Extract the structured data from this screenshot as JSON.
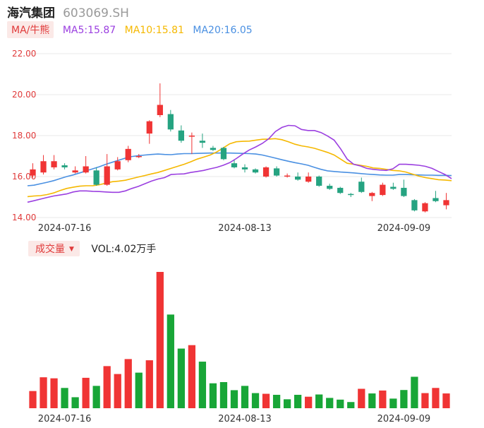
{
  "header": {
    "name": "海汽集团",
    "code": "603069.SH"
  },
  "legend": {
    "ma_label": "MA/牛熊",
    "ma5": "MA5:15.87",
    "ma10": "MA10:15.81",
    "ma20": "MA20:16.05",
    "ma5_color": "#9b3fe0",
    "ma10_color": "#f5b800",
    "ma20_color": "#4a90e2"
  },
  "volume": {
    "label": "成交量",
    "value_text": "VOL:4.02万手"
  },
  "colors": {
    "up": "#f03434",
    "down": "#25a381",
    "vol_up": "#f03434",
    "vol_down": "#18a637",
    "grid": "#e8e8e8"
  },
  "chart_data": {
    "type": "candlestick",
    "y_axis": {
      "ticks": [
        "22.00",
        "20.00",
        "18.00",
        "16.00",
        "14.00"
      ],
      "ylim": [
        14.0,
        22.0
      ]
    },
    "x_axis_labels": [
      {
        "label": "2024-07-16",
        "index": 3
      },
      {
        "label": "2024-08-13",
        "index": 20
      },
      {
        "label": "2024-09-09",
        "index": 35
      }
    ],
    "candles": [
      {
        "o": 16.05,
        "c": 16.35,
        "h": 16.65,
        "l": 15.95
      },
      {
        "o": 16.2,
        "c": 16.75,
        "h": 17.05,
        "l": 16.1
      },
      {
        "o": 16.45,
        "c": 16.75,
        "h": 17.05,
        "l": 16.35
      },
      {
        "o": 16.55,
        "c": 16.45,
        "h": 16.65,
        "l": 16.35
      },
      {
        "o": 16.2,
        "c": 16.3,
        "h": 16.5,
        "l": 16.15
      },
      {
        "o": 16.2,
        "c": 16.5,
        "h": 17.0,
        "l": 16.15
      },
      {
        "o": 16.3,
        "c": 15.6,
        "h": 16.45,
        "l": 15.55
      },
      {
        "o": 15.6,
        "c": 16.5,
        "h": 17.1,
        "l": 15.55
      },
      {
        "o": 16.35,
        "c": 16.75,
        "h": 16.95,
        "l": 16.3
      },
      {
        "o": 16.8,
        "c": 17.35,
        "h": 17.5,
        "l": 16.7
      },
      {
        "o": 16.95,
        "c": 17.0,
        "h": 17.1,
        "l": 16.9
      },
      {
        "o": 18.1,
        "c": 18.7,
        "h": 18.75,
        "l": 17.6
      },
      {
        "o": 19.0,
        "c": 19.5,
        "h": 20.55,
        "l": 18.9
      },
      {
        "o": 19.05,
        "c": 18.3,
        "h": 19.25,
        "l": 18.2
      },
      {
        "o": 18.25,
        "c": 17.75,
        "h": 18.5,
        "l": 17.65
      },
      {
        "o": 17.95,
        "c": 18.0,
        "h": 18.15,
        "l": 17.1
      },
      {
        "o": 17.75,
        "c": 17.65,
        "h": 18.1,
        "l": 17.4
      },
      {
        "o": 17.4,
        "c": 17.3,
        "h": 17.5,
        "l": 17.25
      },
      {
        "o": 17.4,
        "c": 16.85,
        "h": 17.45,
        "l": 16.8
      },
      {
        "o": 16.65,
        "c": 16.45,
        "h": 16.8,
        "l": 16.4
      },
      {
        "o": 16.45,
        "c": 16.35,
        "h": 16.6,
        "l": 16.2
      },
      {
        "o": 16.35,
        "c": 16.2,
        "h": 16.4,
        "l": 16.15
      },
      {
        "o": 16.0,
        "c": 16.45,
        "h": 16.5,
        "l": 15.95
      },
      {
        "o": 16.4,
        "c": 16.05,
        "h": 16.5,
        "l": 16.0
      },
      {
        "o": 16.0,
        "c": 16.05,
        "h": 16.15,
        "l": 15.95
      },
      {
        "o": 16.0,
        "c": 15.85,
        "h": 16.2,
        "l": 15.8
      },
      {
        "o": 15.75,
        "c": 16.0,
        "h": 16.2,
        "l": 15.7
      },
      {
        "o": 16.0,
        "c": 15.55,
        "h": 16.05,
        "l": 15.5
      },
      {
        "o": 15.55,
        "c": 15.4,
        "h": 15.65,
        "l": 15.35
      },
      {
        "o": 15.45,
        "c": 15.2,
        "h": 15.5,
        "l": 15.15
      },
      {
        "o": 15.15,
        "c": 15.1,
        "h": 15.2,
        "l": 15.0
      },
      {
        "o": 15.75,
        "c": 15.25,
        "h": 15.95,
        "l": 15.2
      },
      {
        "o": 15.05,
        "c": 15.2,
        "h": 15.25,
        "l": 14.8
      },
      {
        "o": 15.1,
        "c": 15.6,
        "h": 15.7,
        "l": 15.05
      },
      {
        "o": 15.5,
        "c": 15.4,
        "h": 15.7,
        "l": 15.35
      },
      {
        "o": 15.45,
        "c": 15.05,
        "h": 15.85,
        "l": 15.0
      },
      {
        "o": 14.85,
        "c": 14.35,
        "h": 14.9,
        "l": 14.3
      },
      {
        "o": 14.3,
        "c": 14.7,
        "h": 14.75,
        "l": 14.25
      },
      {
        "o": 14.95,
        "c": 14.8,
        "h": 15.3,
        "l": 14.75
      },
      {
        "o": 14.6,
        "c": 14.85,
        "h": 15.2,
        "l": 14.4
      }
    ],
    "ma5": [
      14.75,
      14.82,
      14.9,
      14.98,
      15.05,
      15.1,
      15.15,
      15.25,
      15.3,
      15.3,
      15.28,
      15.27,
      15.25,
      15.23,
      15.23,
      15.3,
      15.42,
      15.52,
      15.65,
      15.78,
      15.88,
      15.95,
      16.1,
      16.12,
      16.13,
      16.2,
      16.25,
      16.3,
      16.38,
      16.45,
      16.55,
      16.68,
      16.88,
      17.1,
      17.3,
      17.45,
      17.62,
      17.85,
      18.2,
      18.4,
      18.5,
      18.48,
      18.3,
      18.25,
      18.25,
      18.15,
      17.98,
      17.78,
      17.35,
      16.85,
      16.6,
      16.52,
      16.4,
      16.35,
      16.32,
      16.3,
      16.38,
      16.6,
      16.6,
      16.58,
      16.55,
      16.5,
      16.4,
      16.25,
      16.1,
      15.9
    ],
    "ma10": [
      15.02,
      15.05,
      15.07,
      15.12,
      15.2,
      15.32,
      15.42,
      15.48,
      15.53,
      15.55,
      15.55,
      15.6,
      15.68,
      15.75,
      15.78,
      15.82,
      15.9,
      15.98,
      16.05,
      16.13,
      16.2,
      16.3,
      16.4,
      16.5,
      16.6,
      16.72,
      16.85,
      16.95,
      17.05,
      17.2,
      17.4,
      17.6,
      17.7,
      17.72,
      17.73,
      17.78,
      17.82,
      17.83,
      17.85,
      17.8,
      17.7,
      17.58,
      17.5,
      17.45,
      17.38,
      17.28,
      17.18,
      17.05,
      16.85,
      16.65,
      16.6,
      16.55,
      16.5,
      16.42,
      16.4,
      16.35,
      16.3,
      16.28,
      16.22,
      16.12,
      16.02,
      15.95,
      15.9,
      15.85,
      15.83,
      15.8
    ],
    "ma20": [
      15.55,
      15.58,
      15.65,
      15.72,
      15.8,
      15.9,
      16.0,
      16.08,
      16.18,
      16.28,
      16.38,
      16.48,
      16.6,
      16.7,
      16.8,
      16.9,
      16.98,
      17.02,
      17.05,
      17.08,
      17.1,
      17.08,
      17.07,
      17.1,
      17.12,
      17.12,
      17.13,
      17.14,
      17.15,
      17.15,
      17.15,
      17.15,
      17.14,
      17.13,
      17.12,
      17.1,
      17.05,
      16.98,
      16.9,
      16.82,
      16.75,
      16.68,
      16.62,
      16.55,
      16.45,
      16.35,
      16.28,
      16.25,
      16.22,
      16.2,
      16.18,
      16.15,
      16.12,
      16.1,
      16.08,
      16.07,
      16.07,
      16.1,
      16.1,
      16.09,
      16.08,
      16.07,
      16.07,
      16.06,
      16.06,
      16.05
    ],
    "volumes": [
      {
        "v": 1.0,
        "up": true
      },
      {
        "v": 1.8,
        "up": true
      },
      {
        "v": 1.74,
        "up": true
      },
      {
        "v": 1.18,
        "up": false
      },
      {
        "v": 0.64,
        "up": false
      },
      {
        "v": 1.77,
        "up": true
      },
      {
        "v": 1.3,
        "up": false
      },
      {
        "v": 2.45,
        "up": true
      },
      {
        "v": 1.99,
        "up": true
      },
      {
        "v": 2.86,
        "up": true
      },
      {
        "v": 2.07,
        "up": false
      },
      {
        "v": 2.79,
        "up": true
      },
      {
        "v": 7.93,
        "up": true
      },
      {
        "v": 5.45,
        "up": false
      },
      {
        "v": 3.47,
        "up": false
      },
      {
        "v": 3.67,
        "up": true
      },
      {
        "v": 2.71,
        "up": false
      },
      {
        "v": 1.45,
        "up": false
      },
      {
        "v": 1.52,
        "up": false
      },
      {
        "v": 1.05,
        "up": false
      },
      {
        "v": 1.3,
        "up": false
      },
      {
        "v": 0.88,
        "up": false
      },
      {
        "v": 0.84,
        "up": true
      },
      {
        "v": 0.78,
        "up": false
      },
      {
        "v": 0.52,
        "up": false
      },
      {
        "v": 0.78,
        "up": false
      },
      {
        "v": 0.67,
        "up": true
      },
      {
        "v": 0.8,
        "up": false
      },
      {
        "v": 0.6,
        "up": false
      },
      {
        "v": 0.5,
        "up": false
      },
      {
        "v": 0.36,
        "up": false
      },
      {
        "v": 1.13,
        "up": true
      },
      {
        "v": 0.86,
        "up": false
      },
      {
        "v": 1.03,
        "up": true
      },
      {
        "v": 0.56,
        "up": false
      },
      {
        "v": 1.06,
        "up": false
      },
      {
        "v": 1.83,
        "up": false
      },
      {
        "v": 0.88,
        "up": true
      },
      {
        "v": 1.18,
        "up": true
      },
      {
        "v": 0.86,
        "up": true
      }
    ]
  }
}
